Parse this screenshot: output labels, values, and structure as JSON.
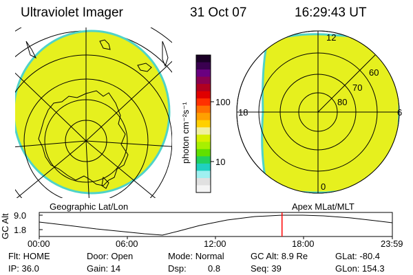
{
  "header": {
    "title": "Ultraviolet Imager",
    "date": "31 Oct 07",
    "time": "16:29:43 UT"
  },
  "left_map": {
    "label": "Geographic Lat/Lon",
    "fill_color": "#e6f01e",
    "edge_color": "#4fd3c8"
  },
  "right_map": {
    "label": "Apex MLat/MLT",
    "mlt_labels": {
      "top": "12",
      "right": "6",
      "bottom": "0",
      "left": "18"
    },
    "lat_labels": [
      "60",
      "70",
      "80"
    ],
    "fill_color": "#e6f01e",
    "edge_color": "#4fd3c8"
  },
  "colorbar": {
    "unit_label": "photon cm⁻²s⁻¹",
    "ticks": [
      "100",
      "10"
    ],
    "colors": [
      "#1a0026",
      "#3a0050",
      "#6a0080",
      "#8a0050",
      "#b00020",
      "#e00000",
      "#ff3000",
      "#ff7000",
      "#ffa000",
      "#ffd000",
      "#f0f0a0",
      "#d8f000",
      "#a8f000",
      "#60e000",
      "#20d060",
      "#20d0c0",
      "#a0f0f0",
      "#e0e0e0",
      "#f4f4f4"
    ]
  },
  "altitude_plot": {
    "ylabel": "GC Alt",
    "yticks": [
      "9.0",
      "1.8"
    ],
    "xticks": [
      "00:00",
      "06:00",
      "12:00",
      "18:00",
      "23:59"
    ],
    "marker_time_hours": 16.5,
    "marker_color": "#ff0000"
  },
  "info": {
    "flt": "Flt: HOME",
    "door": "Door: Open",
    "mode": "Mode: Normal",
    "gcalt": "GC Alt: 8.9 Re",
    "glat": "GLat: -80.4",
    "ip": "IP: 36.0",
    "gain": "Gain: 14",
    "dsp_label": "Dsp:",
    "dsp_value": "0.8",
    "seq": "Seq: 39",
    "glon": "GLon: 154.3"
  }
}
